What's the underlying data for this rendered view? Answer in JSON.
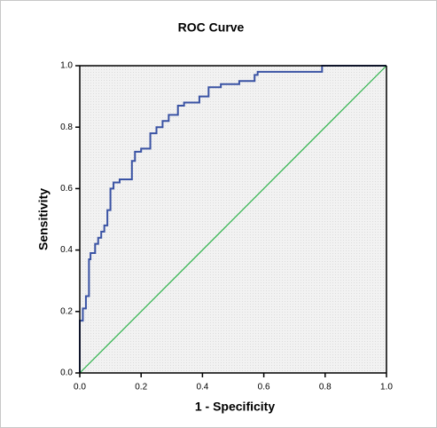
{
  "chart_data": {
    "type": "line",
    "title": "ROC Curve",
    "xlabel": "1 - Specificity",
    "ylabel": "Sensitivity",
    "xlim": [
      0,
      1
    ],
    "ylim": [
      0,
      1
    ],
    "xticks": [
      {
        "value": 0,
        "label": "0.0"
      },
      0.2,
      0.4,
      0.6,
      0.8,
      {
        "value": 1,
        "label": "1.0"
      }
    ],
    "yticks": [
      {
        "value": 0,
        "label": "0.0"
      },
      0.2,
      0.4,
      0.6,
      0.8,
      {
        "value": 1,
        "label": "1.0"
      }
    ],
    "series": [
      {
        "color": "#3a53a4",
        "x": [
          0,
          0,
          0.01,
          0.01,
          0.02,
          0.02,
          0.03,
          0.03,
          0.035,
          0.035,
          0.05,
          0.05,
          0.06,
          0.06,
          0.07,
          0.07,
          0.08,
          0.08,
          0.09,
          0.09,
          0.1,
          0.1,
          0.11,
          0.11,
          0.13,
          0.13,
          0.17,
          0.17,
          0.18,
          0.18,
          0.2,
          0.2,
          0.23,
          0.23,
          0.25,
          0.25,
          0.27,
          0.27,
          0.29,
          0.29,
          0.32,
          0.32,
          0.34,
          0.34,
          0.39,
          0.39,
          0.42,
          0.42,
          0.46,
          0.46,
          0.52,
          0.52,
          0.57,
          0.57,
          0.58,
          0.58,
          0.79,
          0.79,
          1
        ],
        "values": [
          0,
          0.17,
          0.17,
          0.21,
          0.21,
          0.25,
          0.25,
          0.37,
          0.37,
          0.39,
          0.39,
          0.42,
          0.42,
          0.44,
          0.44,
          0.46,
          0.46,
          0.48,
          0.48,
          0.53,
          0.53,
          0.6,
          0.6,
          0.62,
          0.62,
          0.63,
          0.63,
          0.69,
          0.69,
          0.72,
          0.72,
          0.73,
          0.73,
          0.78,
          0.78,
          0.8,
          0.8,
          0.82,
          0.82,
          0.84,
          0.84,
          0.87,
          0.87,
          0.88,
          0.88,
          0.9,
          0.9,
          0.93,
          0.93,
          0.94,
          0.94,
          0.95,
          0.95,
          0.97,
          0.97,
          0.98,
          0.98,
          1,
          1
        ]
      },
      {
        "color": "#2eb34b",
        "x": [
          0,
          1
        ],
        "values": [
          0,
          1
        ]
      }
    ]
  }
}
